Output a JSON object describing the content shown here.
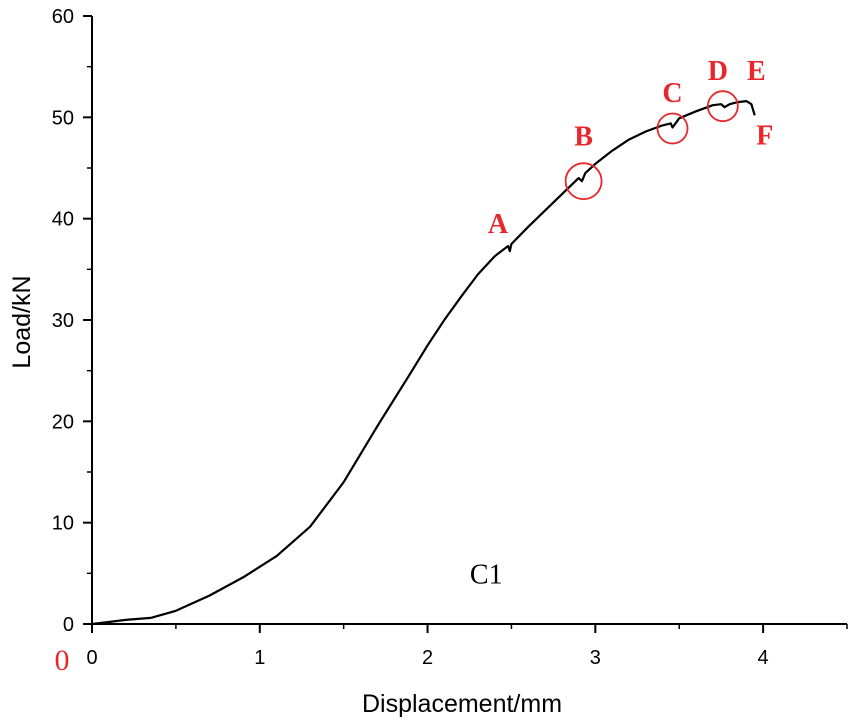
{
  "chart_data": {
    "type": "line",
    "xlabel": "Displacement/mm",
    "ylabel": "Load/kN",
    "xlim": [
      0,
      4.5
    ],
    "ylim": [
      0,
      60
    ],
    "x_ticks": [
      0,
      1,
      2,
      3,
      4
    ],
    "x_tick_labels": [
      "0",
      "1",
      "2",
      "3",
      "4"
    ],
    "y_ticks": [
      0,
      10,
      20,
      30,
      40,
      50,
      60
    ],
    "y_tick_labels": [
      "0",
      "10",
      "20",
      "30",
      "40",
      "50",
      "60"
    ],
    "grid": false,
    "series": [
      {
        "name": "C1",
        "color": "#000000",
        "x": [
          0,
          0.1,
          0.2,
          0.35,
          0.5,
          0.7,
          0.9,
          1.1,
          1.3,
          1.5,
          1.7,
          1.9,
          2.0,
          2.1,
          2.2,
          2.3,
          2.4,
          2.48,
          2.49,
          2.5,
          2.6,
          2.7,
          2.8,
          2.9,
          2.92,
          2.94,
          3.0,
          3.1,
          3.2,
          3.3,
          3.4,
          3.45,
          3.46,
          3.5,
          3.6,
          3.7,
          3.75,
          3.77,
          3.8,
          3.85,
          3.9,
          3.93,
          3.95
        ],
        "y": [
          0,
          0.2,
          0.4,
          0.6,
          1.3,
          2.8,
          4.6,
          6.7,
          9.6,
          14.0,
          19.5,
          24.8,
          27.5,
          30.0,
          32.3,
          34.5,
          36.3,
          37.3,
          36.8,
          37.5,
          39.2,
          40.8,
          42.4,
          44.0,
          43.7,
          44.5,
          45.4,
          46.7,
          47.8,
          48.6,
          49.2,
          49.4,
          49.0,
          49.9,
          50.6,
          51.2,
          51.3,
          51.0,
          51.3,
          51.5,
          51.6,
          51.3,
          50.2
        ]
      }
    ],
    "annotations": [
      {
        "label": "A",
        "x": 2.42,
        "y": 38.6
      },
      {
        "label": "B",
        "x": 2.93,
        "y": 47.2
      },
      {
        "label": "C",
        "x": 3.46,
        "y": 51.5
      },
      {
        "label": "D",
        "x": 3.73,
        "y": 53.7
      },
      {
        "label": "E",
        "x": 3.96,
        "y": 53.7
      },
      {
        "label": "F",
        "x": 4.01,
        "y": 47.3
      }
    ],
    "circles": [
      {
        "label": "B",
        "x": 2.93,
        "y": 43.7
      },
      {
        "label": "C",
        "x": 3.46,
        "y": 48.9
      },
      {
        "label": "D",
        "x": 3.76,
        "y": 51.1
      }
    ],
    "specimen_label": "C1",
    "specimen_label_pos": {
      "x": 2.35,
      "y": 4.0
    },
    "origin_label": "0",
    "accent_color": "#e8262b"
  }
}
